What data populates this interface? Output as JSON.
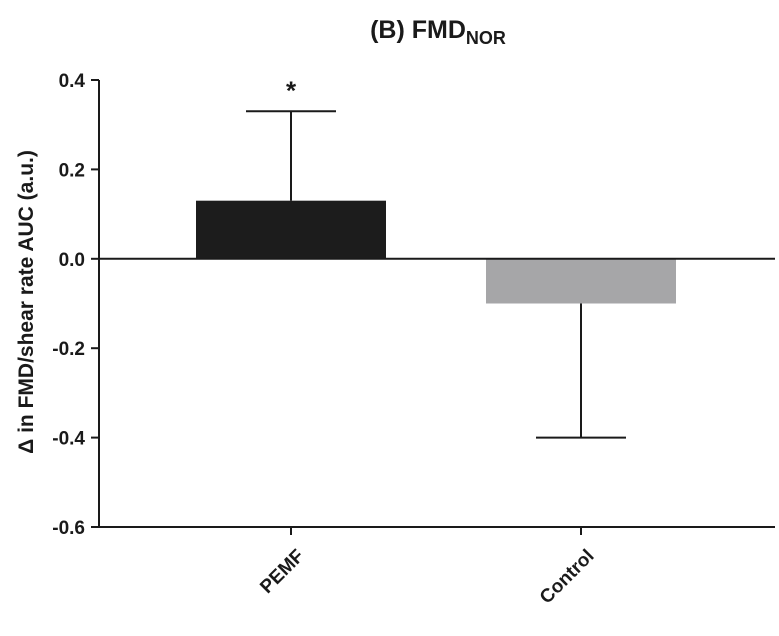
{
  "chart_data": {
    "type": "bar",
    "title": "(B) FMD",
    "title_subscript": "NOR",
    "ylabel": "Δ in FMD/shear rate AUC (a.u.)",
    "xlabel": "",
    "categories": [
      "PEMF",
      "Control"
    ],
    "values": [
      0.13,
      -0.1
    ],
    "error_bars": [
      0.33,
      -0.4
    ],
    "bar_colors": [
      "#1c1c1c",
      "#a6a6a8"
    ],
    "ylim": [
      -0.6,
      0.4
    ],
    "yticks": [
      0.4,
      0.2,
      0.0,
      -0.2,
      -0.4,
      -0.6
    ],
    "ytick_labels": [
      "0.4",
      "0.2",
      "0.0",
      "-0.2",
      "-0.4",
      "-0.6"
    ],
    "annotations": [
      "*",
      ""
    ],
    "grid": false
  }
}
